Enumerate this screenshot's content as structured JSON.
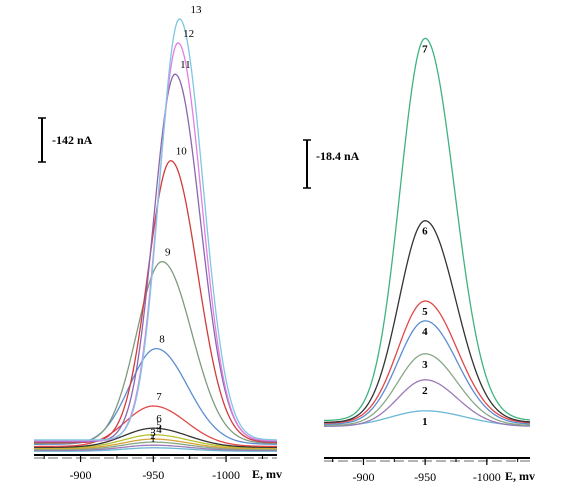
{
  "chart_data": [
    {
      "type": "line",
      "panel": "left",
      "scale_bar_label": "-142 nA",
      "xlabel": "E, mv",
      "xlim": [
        -868,
        -1035
      ],
      "ylim": [
        0,
        1
      ],
      "x_ticks": [
        -900,
        -950,
        -1000
      ],
      "x_tick_labels": [
        "-900",
        "-950",
        "-1000"
      ],
      "series": [
        {
          "name": "1",
          "peak_x": -950,
          "amplitude": 0.008,
          "width": 22,
          "baseline": 0.004,
          "color": "#6bb7d6"
        },
        {
          "name": "2",
          "peak_x": -950,
          "amplitude": 0.012,
          "width": 22,
          "baseline": 0.006,
          "color": "#9b7ab8"
        },
        {
          "name": "3",
          "peak_x": -950,
          "amplitude": 0.017,
          "width": 22,
          "baseline": 0.008,
          "color": "#88a886"
        },
        {
          "name": "4",
          "peak_x": -950,
          "amplitude": 0.022,
          "width": 22,
          "baseline": 0.01,
          "color": "#d9a33a"
        },
        {
          "name": "5",
          "peak_x": -950,
          "amplitude": 0.03,
          "width": 22,
          "baseline": 0.012,
          "color": "#b4c32f"
        },
        {
          "name": "6",
          "peak_x": -950,
          "amplitude": 0.044,
          "width": 22,
          "baseline": 0.013,
          "color": "#333333"
        },
        {
          "name": "7",
          "peak_x": -950,
          "amplitude": 0.093,
          "width": 21,
          "baseline": 0.015,
          "color": "#e04848"
        },
        {
          "name": "8",
          "peak_x": -952,
          "amplitude": 0.22,
          "width": 20,
          "baseline": 0.02,
          "color": "#5b8dd1"
        },
        {
          "name": "9",
          "peak_x": -956,
          "amplitude": 0.418,
          "width": 19,
          "baseline": 0.022,
          "color": "#7f9a80"
        },
        {
          "name": "10",
          "peak_x": -962,
          "amplitude": 0.648,
          "width": 17,
          "baseline": 0.024,
          "color": "#d23b3b"
        },
        {
          "name": "11",
          "peak_x": -965,
          "amplitude": 0.845,
          "width": 16,
          "baseline": 0.026,
          "color": "#8a66b0"
        },
        {
          "name": "12",
          "peak_x": -967,
          "amplitude": 0.915,
          "width": 15,
          "baseline": 0.028,
          "color": "#e47ee2"
        },
        {
          "name": "13",
          "peak_x": -968,
          "amplitude": 0.968,
          "width": 15,
          "baseline": 0.03,
          "color": "#7fc6e2"
        }
      ]
    },
    {
      "type": "line",
      "panel": "right",
      "scale_bar_label": "-18.4 nA",
      "xlabel": "E, mv",
      "xlim": [
        -868,
        -1035
      ],
      "ylim": [
        0,
        1
      ],
      "x_ticks": [
        -900,
        -950,
        -1000
      ],
      "x_tick_labels": [
        "-900",
        "-950",
        "-1000"
      ],
      "series": [
        {
          "name": "1",
          "peak_x": -950,
          "amplitude": 0.04,
          "width": 30,
          "baseline": 0.03,
          "color": "#6bb7d6"
        },
        {
          "name": "2",
          "peak_x": -950,
          "amplitude": 0.12,
          "width": 24,
          "baseline": 0.03,
          "color": "#9b7ab8"
        },
        {
          "name": "3",
          "peak_x": -950,
          "amplitude": 0.185,
          "width": 24,
          "baseline": 0.032,
          "color": "#88a886"
        },
        {
          "name": "4",
          "peak_x": -950,
          "amplitude": 0.267,
          "width": 24,
          "baseline": 0.035,
          "color": "#5b8dd1"
        },
        {
          "name": "5",
          "peak_x": -950,
          "amplitude": 0.315,
          "width": 24,
          "baseline": 0.038,
          "color": "#e04848"
        },
        {
          "name": "6",
          "peak_x": -950,
          "amplitude": 0.52,
          "width": 23,
          "baseline": 0.04,
          "color": "#333333"
        },
        {
          "name": "7",
          "peak_x": -950,
          "amplitude": 0.985,
          "width": 22,
          "baseline": 0.045,
          "color": "#3fb37f"
        }
      ]
    }
  ]
}
